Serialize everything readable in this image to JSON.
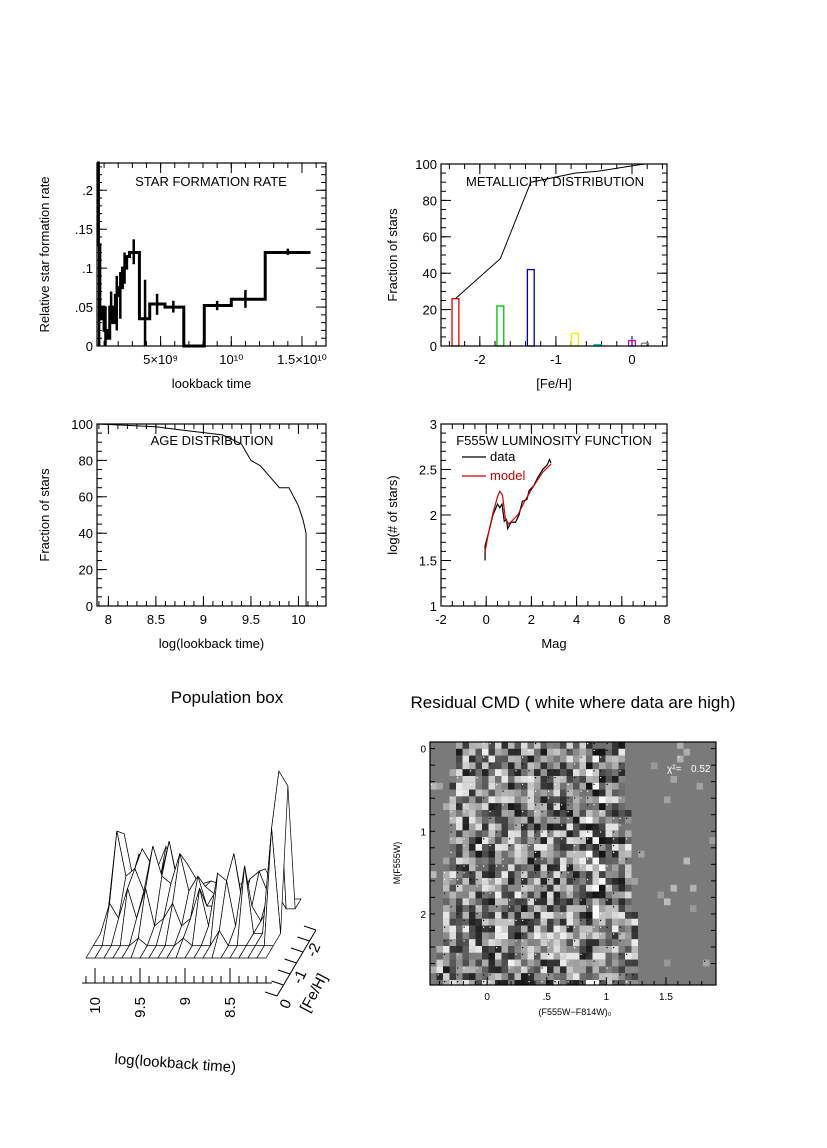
{
  "chart_data": [
    {
      "id": "sfr",
      "type": "line",
      "title": "STAR FORMATION RATE",
      "xlabel": "lookback time",
      "ylabel": "Relative star formation rate",
      "xlim": [
        500000000.0,
        16700000000.0
      ],
      "ylim": [
        0,
        0.235
      ],
      "xticks": [
        {
          "v": 5000000000.0,
          "label": "5×10⁹"
        },
        {
          "v": 10000000000.0,
          "label": "10¹⁰"
        },
        {
          "v": 15000000000.0,
          "label": "1.5×10¹⁰"
        }
      ],
      "xminor": 1000000000.0,
      "yticks": [
        {
          "v": 0,
          "label": "0"
        },
        {
          "v": 0.05,
          "label": ".05"
        },
        {
          "v": 0.1,
          "label": ".1"
        },
        {
          "v": 0.15,
          "label": ".15"
        },
        {
          "v": 0.2,
          "label": ".2"
        }
      ],
      "yminor": 0.01,
      "steps": [
        [
          500000000.0,
          600000000.0,
          0.235
        ],
        [
          600000000.0,
          700000000.0,
          0.13
        ],
        [
          700000000.0,
          800000000.0,
          0.05
        ],
        [
          800000000.0,
          900000000.0,
          0.035
        ],
        [
          900000000.0,
          1000000000.0,
          0.05
        ],
        [
          1000000000.0,
          1200000000.0,
          0.02
        ],
        [
          1200000000.0,
          1400000000.0,
          0.01
        ],
        [
          1400000000.0,
          1600000000.0,
          0.05
        ],
        [
          1600000000.0,
          1800000000.0,
          0.03
        ],
        [
          1800000000.0,
          2000000000.0,
          0.065
        ],
        [
          2000000000.0,
          2300000000.0,
          0.075
        ],
        [
          2300000000.0,
          2600000000.0,
          0.1
        ],
        [
          2600000000.0,
          2800000000.0,
          0.115
        ],
        [
          2800000000.0,
          3500000000.0,
          0.12
        ],
        [
          3500000000.0,
          4230000000.0,
          0.035
        ],
        [
          4230000000.0,
          5310000000.0,
          0.054
        ],
        [
          5310000000.0,
          6640000000.0,
          0.05
        ],
        [
          6640000000.0,
          8090000000.0,
          0
        ],
        [
          8090000000.0,
          10000000000.0,
          0.052
        ],
        [
          10000000000.0,
          12400000000.0,
          0.06
        ],
        [
          12400000000.0,
          15600000000.0,
          0.12
        ]
      ],
      "errorbars": [
        [
          550000000.0,
          0.21,
          0.235
        ],
        [
          650000000.0,
          0.0,
          0.13
        ],
        [
          1100000000.0,
          0.0,
          0.05
        ],
        [
          1500000000.0,
          0.03,
          0.07
        ],
        [
          1900000000.0,
          0.02,
          0.09
        ],
        [
          2150000000.0,
          0.035,
          0.095
        ],
        [
          2450000000.0,
          0.08,
          0.12
        ],
        [
          3100000000.0,
          0.105,
          0.137
        ],
        [
          3900000000.0,
          0.0,
          0.085
        ],
        [
          4750000000.0,
          0.04,
          0.067
        ],
        [
          5900000000.0,
          0.043,
          0.058
        ],
        [
          9000000000.0,
          0.046,
          0.058
        ],
        [
          11000000000.0,
          0.049,
          0.072
        ],
        [
          14000000000.0,
          0.117,
          0.125
        ]
      ]
    },
    {
      "id": "metallicity",
      "type": "bar",
      "title": "METALLICITY DISTRIBUTION",
      "xlabel": "[Fe/H]",
      "ylabel": "Fraction of stars",
      "xlim": [
        -2.51,
        0.46
      ],
      "ylim": [
        0,
        100
      ],
      "xticks": [
        {
          "v": -2,
          "label": "-2"
        },
        {
          "v": -1,
          "label": "-1"
        },
        {
          "v": 0,
          "label": "0"
        }
      ],
      "xminor": 0.2,
      "yticks": [
        {
          "v": 0,
          "label": "0"
        },
        {
          "v": 20,
          "label": "20"
        },
        {
          "v": 40,
          "label": "40"
        },
        {
          "v": 60,
          "label": "60"
        },
        {
          "v": 80,
          "label": "80"
        },
        {
          "v": 100,
          "label": "100"
        }
      ],
      "yminor": 5,
      "bars": [
        {
          "x": -2.32,
          "value": 26,
          "color": "#e00000"
        },
        {
          "x": -1.73,
          "value": 22,
          "color": "#00c000"
        },
        {
          "x": -1.33,
          "value": 42,
          "color": "#0000b0"
        },
        {
          "x": -0.75,
          "value": 7,
          "color": "#f0f000"
        },
        {
          "x": -0.45,
          "value": 0.8,
          "color": "#00c0c0"
        },
        {
          "x": 0.0,
          "value": 3,
          "color": "#d000d0"
        },
        {
          "x": 0.17,
          "value": 1.5,
          "color": "#808080"
        }
      ],
      "cumulative": [
        [
          -2.32,
          26
        ],
        [
          -1.73,
          48
        ],
        [
          -1.33,
          90
        ],
        [
          -0.75,
          95
        ],
        [
          -0.45,
          96
        ],
        [
          0.0,
          99
        ],
        [
          0.17,
          100
        ],
        [
          0.46,
          100
        ]
      ]
    },
    {
      "id": "age",
      "type": "line",
      "title": "AGE DISTRIBUTION",
      "xlabel": "log(lookback time)",
      "ylabel": "Fraction of stars",
      "xlim": [
        7.88,
        10.29
      ],
      "ylim": [
        0,
        100
      ],
      "xticks": [
        {
          "v": 8,
          "label": "8"
        },
        {
          "v": 8.5,
          "label": "8.5"
        },
        {
          "v": 9,
          "label": "9"
        },
        {
          "v": 9.5,
          "label": "9.5"
        },
        {
          "v": 10,
          "label": "10"
        }
      ],
      "xminor": 0.1,
      "yticks": [
        {
          "v": 0,
          "label": "0"
        },
        {
          "v": 20,
          "label": "20"
        },
        {
          "v": 40,
          "label": "40"
        },
        {
          "v": 60,
          "label": "60"
        },
        {
          "v": 80,
          "label": "80"
        },
        {
          "v": 100,
          "label": "100"
        }
      ],
      "yminor": 5,
      "points": [
        [
          7.88,
          100
        ],
        [
          8.5,
          98.5
        ],
        [
          8.8,
          96.5
        ],
        [
          9.2,
          94
        ],
        [
          9.4,
          89
        ],
        [
          9.5,
          80
        ],
        [
          9.6,
          77
        ],
        [
          9.7,
          71
        ],
        [
          9.8,
          65
        ],
        [
          9.9,
          65
        ],
        [
          10.0,
          55
        ],
        [
          10.05,
          47
        ],
        [
          10.08,
          40
        ],
        [
          10.08,
          0
        ]
      ]
    },
    {
      "id": "luminosity",
      "type": "line",
      "title": "F555W LUMINOSITY FUNCTION",
      "xlabel": "Mag",
      "ylabel": "log(# of stars)",
      "xlim": [
        -2,
        8
      ],
      "ylim": [
        1,
        3
      ],
      "xticks": [
        {
          "v": -2,
          "label": "-2"
        },
        {
          "v": 0,
          "label": "0"
        },
        {
          "v": 2,
          "label": "2"
        },
        {
          "v": 4,
          "label": "4"
        },
        {
          "v": 6,
          "label": "6"
        },
        {
          "v": 8,
          "label": "8"
        }
      ],
      "xminor": 0.5,
      "yticks": [
        {
          "v": 1,
          "label": "1"
        },
        {
          "v": 1.5,
          "label": "1.5"
        },
        {
          "v": 2,
          "label": "2"
        },
        {
          "v": 2.5,
          "label": "2.5"
        },
        {
          "v": 3,
          "label": "3"
        }
      ],
      "yminor": 0.1,
      "legend_position": "top-left",
      "series": [
        {
          "name": "data",
          "color": "#000000",
          "points": [
            [
              -0.05,
              1.5
            ],
            [
              -0.05,
              1.66
            ],
            [
              0.1,
              1.8
            ],
            [
              0.3,
              2.0
            ],
            [
              0.5,
              2.12
            ],
            [
              0.6,
              2.08
            ],
            [
              0.7,
              2.12
            ],
            [
              0.8,
              1.93
            ],
            [
              0.9,
              1.95
            ],
            [
              0.95,
              1.85
            ],
            [
              1.1,
              1.92
            ],
            [
              1.3,
              1.92
            ],
            [
              1.45,
              2.0
            ],
            [
              1.6,
              2.15
            ],
            [
              1.8,
              2.17
            ],
            [
              1.9,
              2.27
            ],
            [
              2.1,
              2.32
            ],
            [
              2.3,
              2.42
            ],
            [
              2.5,
              2.5
            ],
            [
              2.7,
              2.55
            ],
            [
              2.8,
              2.61
            ],
            [
              2.87,
              2.57
            ]
          ]
        },
        {
          "name": "model",
          "color": "#d00000",
          "points": [
            [
              -0.05,
              1.6
            ],
            [
              0.1,
              1.8
            ],
            [
              0.3,
              2.02
            ],
            [
              0.5,
              2.2
            ],
            [
              0.6,
              2.26
            ],
            [
              0.72,
              2.22
            ],
            [
              0.85,
              1.96
            ],
            [
              1.0,
              1.9
            ],
            [
              1.4,
              2.0
            ],
            [
              1.7,
              2.15
            ],
            [
              2.0,
              2.28
            ],
            [
              2.5,
              2.47
            ],
            [
              2.87,
              2.56
            ]
          ]
        }
      ]
    },
    {
      "id": "population_box",
      "type": "surface",
      "title": "Population box",
      "xlabel": "log(lookback time)",
      "ylabel": "[Fe/H]",
      "xticks": [
        {
          "v": 10,
          "label": "10"
        },
        {
          "v": 9.5,
          "label": "9.5"
        },
        {
          "v": 9,
          "label": "9"
        },
        {
          "v": 8.5,
          "label": "8.5"
        }
      ],
      "yticks": [
        {
          "v": 0,
          "label": "0"
        },
        {
          "v": -1,
          "label": "-1"
        },
        {
          "v": -2,
          "label": "-2"
        }
      ],
      "ages": [
        10.1,
        10.0,
        9.9,
        9.8,
        9.7,
        9.6,
        9.5,
        9.4,
        9.3,
        9.2,
        9.1,
        9.0,
        8.9,
        8.8,
        8.7,
        8.6,
        8.5,
        8.4,
        8.3,
        8.2,
        8.1
      ],
      "feh": [
        -2.4,
        -2.0,
        -1.5,
        -1.0,
        -0.5,
        0.0
      ],
      "z": [
        [
          0.05,
          0.1,
          0.3,
          0.15,
          0.2,
          0.35,
          0.2,
          0.1,
          0.15,
          0.1,
          0.12,
          0.1,
          0.08,
          0.1,
          0.1,
          0.1,
          0.2,
          0.1,
          0.1,
          0.0,
          0.0
        ],
        [
          0.1,
          0.5,
          0.2,
          0.4,
          0.3,
          0.2,
          0.45,
          0.15,
          0.3,
          0.2,
          0.15,
          0.1,
          0.1,
          0.15,
          0.1,
          0.2,
          0.25,
          0.1,
          0.1,
          0.0,
          0.0
        ],
        [
          0.05,
          0.6,
          0.3,
          0.35,
          0.2,
          0.5,
          0.3,
          0.25,
          0.45,
          0.2,
          0.3,
          0.1,
          0.1,
          0.2,
          0.45,
          0.1,
          0.1,
          0.0,
          0.1,
          1.0,
          0.9
        ],
        [
          0.0,
          0.2,
          0.1,
          0.3,
          0.1,
          0.3,
          0.05,
          0.1,
          0.2,
          0.05,
          0.1,
          0.3,
          0.05,
          0.4,
          0.35,
          0.05,
          0.45,
          0.0,
          0.0,
          0.7,
          0.0
        ],
        [
          0.0,
          0.0,
          0.0,
          0.0,
          0.0,
          0.05,
          0.0,
          0.0,
          0.0,
          0.0,
          0.05,
          0.0,
          0.0,
          0.0,
          0.1,
          0.0,
          0.0,
          0.0,
          0.0,
          0.0,
          0.0
        ],
        [
          0.0,
          0.0,
          0.0,
          0.0,
          0.0,
          0.0,
          0.0,
          0.0,
          0.0,
          0.0,
          0.0,
          0.0,
          0.0,
          0.0,
          0.0,
          0.0,
          0.0,
          0.0,
          0.0,
          0.0,
          0.0
        ]
      ]
    },
    {
      "id": "residual_cmd",
      "type": "heatmap",
      "title": "Residual CMD ( white where data are high)",
      "xlabel": "(F555W−F814W)₀",
      "ylabel": "M(F555W)",
      "xlim": [
        -0.48,
        1.92
      ],
      "ylim": [
        2.86,
        -0.08
      ],
      "xticks": [
        {
          "v": 0,
          "label": "0"
        },
        {
          "v": 0.5,
          "label": ".5"
        },
        {
          "v": 1,
          "label": "1"
        },
        {
          "v": 1.5,
          "label": "1.5"
        }
      ],
      "xminor": 0.1,
      "yticks": [
        {
          "v": 0,
          "label": "0"
        },
        {
          "v": 1,
          "label": "1"
        },
        {
          "v": 2,
          "label": "2"
        }
      ],
      "yminor": 0.2,
      "chi2_label": "χ²=",
      "chi2_value": "0.52",
      "background_gray": "#7a7a7a",
      "populated_color_range_top": [
        -0.3,
        1.12
      ],
      "populated_color_range_bottom": [
        -0.45,
        1.25
      ]
    }
  ]
}
